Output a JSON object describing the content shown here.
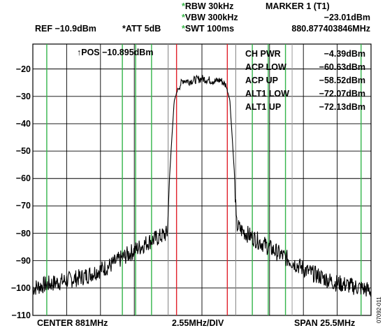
{
  "header": {
    "rbw": "RBW 30kHz",
    "vbw": "VBW 300kHz",
    "swt": "SWT 100ms",
    "marker_title": "MARKER 1 (T1)",
    "marker_level": "−23.01dBm",
    "marker_freq": "880.877403846MHz",
    "ref": "REF −10.9dBm",
    "att": "*ATT 5dB",
    "star": "*"
  },
  "pos_label": "↑POS −10.895dBm",
  "measurements": [
    {
      "label": "CH PWR",
      "value": "−4.39dBm"
    },
    {
      "label": "ACP LOW",
      "value": "−60.63dBm"
    },
    {
      "label": "ACP UP",
      "value": "−58.52dBm"
    },
    {
      "label": "ALT1 LOW",
      "value": "−72.07dBm"
    },
    {
      "label": "ALT1 UP",
      "value": "−72.13dBm"
    }
  ],
  "footer": {
    "center": "CENTER 881MHz",
    "div": "2.55MHz/DIV",
    "span": "SPAN 25.5MHz"
  },
  "figure_id": "07092-011",
  "colors": {
    "channel_line": "#e0202a",
    "adjacent_line": "#33b54a",
    "trace": "#000000",
    "grid": "#000000"
  },
  "chart_data": {
    "type": "line",
    "xlabel": "",
    "ylabel": "",
    "x_unit": "MHz",
    "xlim": [
      868.25,
      893.75
    ],
    "ylim": [
      -110,
      -10.9
    ],
    "y_ticks": [
      -20,
      -30,
      -40,
      -50,
      -60,
      -70,
      -80,
      -90,
      -100,
      -110
    ],
    "grid": true,
    "red_lines_mhz": [
      879.085,
      882.915
    ],
    "green_lines_mhz": [
      869.3,
      875.0,
      876.0,
      877.2,
      884.8,
      886.0,
      887.3,
      893.0
    ],
    "gray_lines_mhz": [
      878.45,
      883.55,
      887.8
    ],
    "series": [
      {
        "x": [
          868.25,
          869.0,
          870.0,
          871.0,
          872.0,
          873.0,
          874.0,
          875.0,
          876.0,
          877.0,
          877.5,
          878.0,
          878.4,
          878.55,
          878.9,
          879.2,
          879.6,
          880.0,
          880.5,
          881.0,
          881.5,
          882.0,
          882.4,
          882.8,
          883.1,
          883.45,
          883.6,
          884.0,
          885.0,
          886.0,
          887.0,
          888.0,
          889.0,
          890.0,
          891.0,
          892.0,
          893.0,
          893.75
        ],
        "y": [
          -100,
          -99,
          -98,
          -97,
          -96,
          -94,
          -92,
          -89,
          -86,
          -83,
          -82,
          -81,
          -80,
          -60,
          -32,
          -27,
          -24,
          -24.5,
          -24,
          -23.5,
          -24,
          -24.5,
          -24,
          -26,
          -31,
          -58,
          -77,
          -79,
          -82,
          -85,
          -88,
          -91,
          -94,
          -96,
          -98,
          -99,
          -100,
          -101
        ]
      }
    ]
  }
}
